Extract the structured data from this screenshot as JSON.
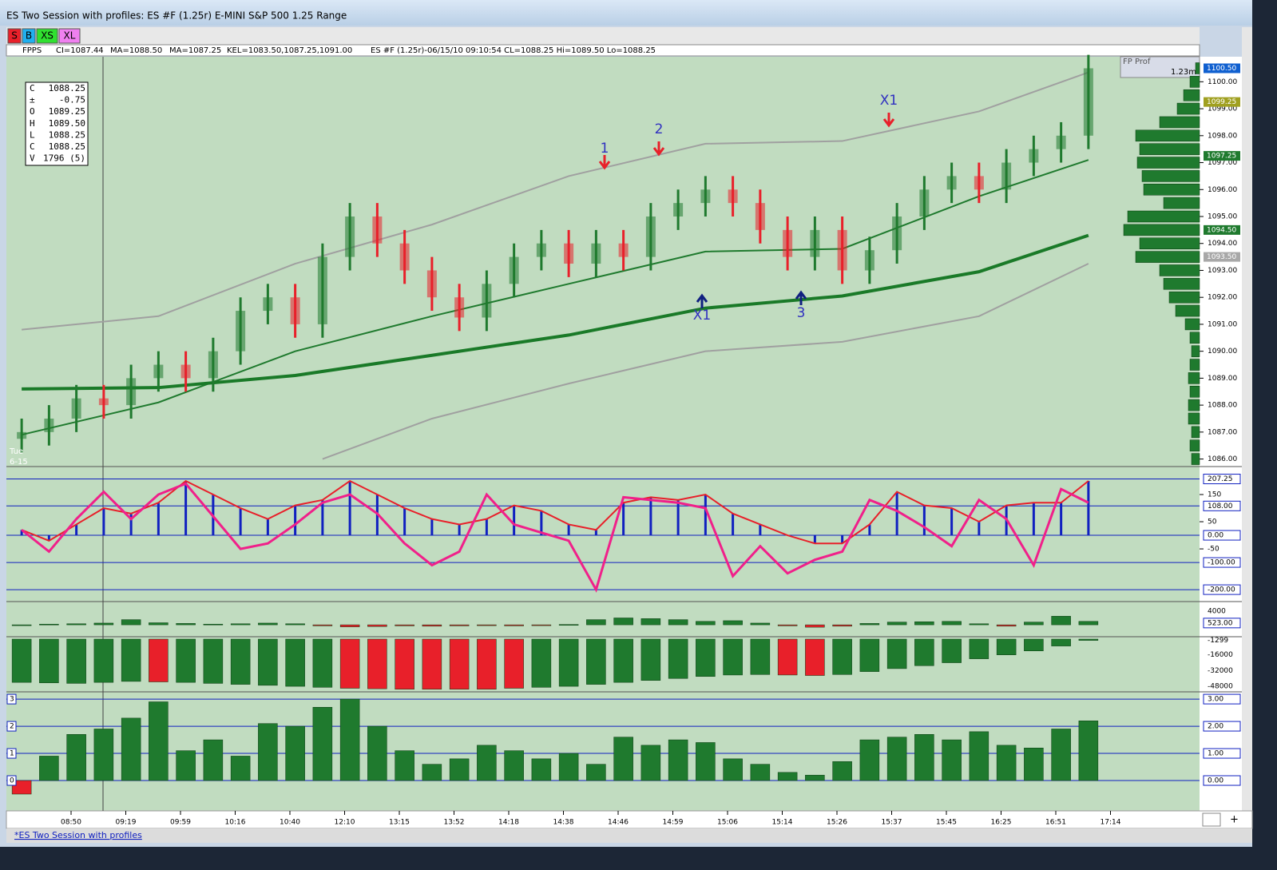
{
  "window": {
    "title": "ES Two Session with profiles: ES #F (1.25r) E-MINI S&P 500 1.25 Range",
    "tab": "*ES Two Session with profiles"
  },
  "toolbar": {
    "buttons": [
      {
        "label": "S",
        "color": "#e8202a"
      },
      {
        "label": "B",
        "color": "#20b0f0"
      },
      {
        "label": "XS",
        "color": "#30e030"
      },
      {
        "label": "XL",
        "color": "#f080f0"
      }
    ]
  },
  "info_line": [
    "FPPS",
    "CI=1087.44",
    "MA=1088.50",
    "MA=1087.25",
    "KEL=1083.50,1087.25,1091.00",
    "ES #F (1.25r)-06/15/10 09:10:54 CL=1088.25 Hi=1089.50 Lo=1088.25"
  ],
  "data_box": {
    "rows": [
      [
        "C",
        "1088.25"
      ],
      [
        "±",
        "-0.75"
      ],
      [
        "O",
        "1089.25"
      ],
      [
        "H",
        "1089.50"
      ],
      [
        "L",
        "1088.25"
      ],
      [
        "C",
        "1088.25"
      ],
      [
        "V",
        "1796 (5)"
      ]
    ]
  },
  "price_panel": {
    "type": "candlestick",
    "date_label": [
      "Tue",
      "6-15"
    ],
    "open": [
      1086.75,
      1087.0,
      1087.5,
      1088.25,
      1088.0,
      1089.0,
      1089.5,
      1089.0,
      1090.0,
      1091.5,
      1092.0,
      1091.0,
      1093.5,
      1095.0,
      1094.0,
      1093.0,
      1092.0,
      1091.25,
      1092.5,
      1093.5,
      1094.0,
      1093.25,
      1094.0,
      1093.5,
      1095.0,
      1095.5,
      1096.0,
      1095.5,
      1094.5,
      1093.5,
      1094.5,
      1093.0,
      1093.75,
      1095.0,
      1096.0,
      1096.5,
      1096.0,
      1097.0,
      1097.5,
      1098.0
    ],
    "high": [
      1087.5,
      1088.0,
      1088.75,
      1088.75,
      1089.5,
      1090.0,
      1090.0,
      1090.5,
      1092.0,
      1092.5,
      1092.5,
      1094.0,
      1095.5,
      1095.5,
      1094.5,
      1093.5,
      1092.5,
      1093.0,
      1094.0,
      1094.5,
      1094.5,
      1094.5,
      1094.5,
      1095.5,
      1096.0,
      1096.5,
      1096.5,
      1096.0,
      1095.0,
      1095.0,
      1095.0,
      1094.25,
      1095.5,
      1096.5,
      1097.0,
      1097.0,
      1097.5,
      1098.0,
      1098.5,
      1101.0
    ],
    "low": [
      1086.25,
      1086.5,
      1087.0,
      1087.5,
      1087.5,
      1088.5,
      1088.5,
      1088.5,
      1089.5,
      1091.0,
      1090.5,
      1090.5,
      1093.0,
      1093.5,
      1092.5,
      1091.5,
      1090.75,
      1090.75,
      1092.0,
      1093.0,
      1092.75,
      1092.75,
      1093.0,
      1093.0,
      1094.5,
      1095.0,
      1095.0,
      1094.0,
      1093.0,
      1093.0,
      1092.5,
      1092.5,
      1093.25,
      1094.5,
      1095.5,
      1095.5,
      1095.5,
      1096.5,
      1097.0,
      1097.5
    ],
    "close": [
      1087.0,
      1087.5,
      1088.25,
      1088.0,
      1089.0,
      1089.5,
      1089.0,
      1090.0,
      1091.5,
      1092.0,
      1091.0,
      1093.5,
      1095.0,
      1094.0,
      1093.0,
      1092.0,
      1091.25,
      1092.5,
      1093.5,
      1094.0,
      1093.25,
      1094.0,
      1093.5,
      1095.0,
      1095.5,
      1096.0,
      1095.5,
      1094.5,
      1093.5,
      1094.5,
      1093.0,
      1093.75,
      1095.0,
      1096.0,
      1096.5,
      1096.0,
      1097.0,
      1097.5,
      1098.0,
      1100.5
    ],
    "up_color": "#1f7a2e",
    "down_color": "#e8202a",
    "lines": [
      {
        "color": "#a0a0a0",
        "width": 2,
        "x": [
          0,
          5,
          10,
          15,
          20,
          25,
          30,
          35,
          39
        ],
        "values": [
          1090.8,
          1091.3,
          1093.25,
          1094.7,
          1096.5,
          1097.7,
          1097.8,
          1098.9,
          1100.35
        ]
      },
      {
        "color": "#a0a0a0",
        "width": 2,
        "x": [
          11,
          15,
          20,
          25,
          30,
          35,
          39
        ],
        "values": [
          1086.0,
          1087.5,
          1088.8,
          1090.0,
          1090.35,
          1091.3,
          1093.25
        ]
      },
      {
        "color": "#1f7a2e",
        "width": 2,
        "x": [
          0,
          5,
          10,
          15,
          20,
          25,
          30,
          35,
          39
        ],
        "values": [
          1086.9,
          1088.1,
          1090.0,
          1091.3,
          1092.5,
          1093.7,
          1093.8,
          1095.75,
          1097.1
        ]
      },
      {
        "color": "#1a7a28",
        "width": 4,
        "x": [
          0,
          5,
          10,
          15,
          20,
          25,
          30,
          35,
          39
        ],
        "values": [
          1088.6,
          1088.65,
          1089.1,
          1089.85,
          1090.6,
          1091.6,
          1092.05,
          1092.95,
          1094.3
        ]
      }
    ],
    "ylim": [
      1085.75,
      1100.9
    ],
    "yticks": [
      {
        "value": 1086,
        "label": "1086.00"
      },
      {
        "value": 1087,
        "label": "1087.00"
      },
      {
        "value": 1088,
        "label": "1088.00"
      },
      {
        "value": 1089,
        "label": "1089.00"
      },
      {
        "value": 1090,
        "label": "1090.00"
      },
      {
        "value": 1091,
        "label": "1091.00"
      },
      {
        "value": 1092,
        "label": "1092.00"
      },
      {
        "value": 1093,
        "label": "1093.00"
      },
      {
        "value": 1094,
        "label": "1094.00"
      },
      {
        "value": 1095,
        "label": "1095.00"
      },
      {
        "value": 1096,
        "label": "1096.00"
      },
      {
        "value": 1097,
        "label": "1097.00"
      },
      {
        "value": 1098,
        "label": "1098.00"
      },
      {
        "value": 1099,
        "label": "1099.00"
      },
      {
        "value": 1100,
        "label": "1100.00"
      }
    ],
    "price_markers": [
      {
        "value": 1100.5,
        "label": "1100.50",
        "color": "#1060d0"
      },
      {
        "value": 1099.25,
        "label": "1099.25",
        "color": "#a0a020"
      },
      {
        "value": 1097.25,
        "label": "1097.25",
        "color": "#1f7a2e"
      },
      {
        "value": 1094.5,
        "label": "1094.50",
        "color": "#1f7a2e"
      },
      {
        "value": 1093.5,
        "label": "1093.50",
        "color": "#a8a8a8"
      }
    ],
    "annotations": [
      {
        "text": "1",
        "dir": "down"
      },
      {
        "text": "2",
        "dir": "down"
      },
      {
        "text": "X1",
        "dir": "down"
      },
      {
        "text": "X1",
        "dir": "up"
      },
      {
        "text": "3",
        "dir": "up"
      }
    ]
  },
  "profile": {
    "title": "FP Prof",
    "label": "1.23m",
    "color": "#1f7a2e",
    "levels": [
      1086,
      1086.5,
      1087,
      1087.5,
      1088,
      1088.5,
      1089,
      1089.5,
      1090,
      1090.5,
      1091,
      1091.5,
      1092,
      1092.5,
      1093,
      1093.5,
      1094,
      1094.5,
      1095,
      1095.5,
      1096,
      1096.5,
      1097,
      1097.5,
      1098,
      1098.5,
      1099,
      1099.5,
      1100,
      1100.5
    ],
    "values": [
      10,
      12,
      10,
      14,
      14,
      12,
      14,
      12,
      10,
      12,
      18,
      30,
      38,
      45,
      50,
      80,
      75,
      95,
      90,
      45,
      70,
      72,
      78,
      75,
      80,
      50,
      28,
      20,
      12,
      5
    ]
  },
  "oscillator": {
    "type": "bar",
    "color": "#1020c0",
    "line_color": "#e8202a",
    "osc_color": "#f0208a",
    "values": [
      20,
      -20,
      40,
      100,
      80,
      120,
      200,
      150,
      100,
      60,
      110,
      130,
      200,
      150,
      100,
      60,
      40,
      60,
      110,
      90,
      40,
      20,
      120,
      140,
      130,
      150,
      80,
      40,
      0,
      -30,
      -30,
      40,
      160,
      110,
      100,
      50,
      110,
      120,
      120,
      200
    ],
    "line": [
      20,
      -60,
      60,
      160,
      60,
      150,
      190,
      70,
      -50,
      -30,
      40,
      120,
      150,
      80,
      -30,
      -110,
      -60,
      150,
      40,
      10,
      -20,
      -200,
      140,
      130,
      120,
      100,
      -150,
      -40,
      -140,
      -90,
      -60,
      130,
      90,
      30,
      -40,
      130,
      60,
      -110,
      170,
      120
    ],
    "ylim": [
      -235,
      250
    ],
    "yticks": [
      {
        "value": 207.25,
        "label": "207.25"
      },
      150,
      {
        "value": 108,
        "label": "108.00"
      },
      50,
      {
        "value": 0,
        "label": "0.00"
      },
      -50,
      {
        "value": -100,
        "label": "-100.00"
      },
      {
        "value": -200,
        "label": "-200.00"
      }
    ]
  },
  "delta": {
    "type": "bar",
    "up_color": "#1f7a2e",
    "down_color": "#e8202a",
    "values": [
      0,
      200,
      300,
      500,
      1500,
      600,
      400,
      200,
      300,
      500,
      300,
      -300,
      -600,
      -500,
      -300,
      -400,
      -300,
      -200,
      -300,
      -100,
      100,
      1500,
      2000,
      1800,
      1500,
      1000,
      1200,
      500,
      -300,
      -700,
      -400,
      400,
      800,
      900,
      1000,
      300,
      -400,
      800,
      2500,
      1000
    ],
    "ylim": [
      -3000,
      6300
    ],
    "yticks": [
      4000,
      {
        "value": 523,
        "label": "523.00"
      }
    ]
  },
  "cumulative": {
    "type": "bar",
    "values": [
      -44000,
      -44500,
      -45000,
      -44000,
      -43000,
      -43500,
      -44000,
      -45000,
      -46000,
      -47000,
      -48000,
      -49000,
      -50000,
      -50500,
      -51000,
      -51000,
      -51000,
      -51000,
      -50000,
      -49000,
      -48000,
      -46000,
      -44000,
      -42000,
      -40000,
      -38000,
      -36500,
      -36000,
      -36500,
      -37000,
      -36000,
      -33000,
      -30000,
      -27000,
      -24000,
      -20000,
      -16000,
      -12000,
      -7000,
      -1299
    ],
    "colors": [
      "#1f7a2e",
      "#1f7a2e",
      "#1f7a2e",
      "#1f7a2e",
      "#1f7a2e",
      "#e8202a",
      "#1f7a2e",
      "#1f7a2e",
      "#1f7a2e",
      "#1f7a2e",
      "#1f7a2e",
      "#1f7a2e",
      "#e8202a",
      "#e8202a",
      "#e8202a",
      "#e8202a",
      "#e8202a",
      "#e8202a",
      "#e8202a",
      "#1f7a2e",
      "#1f7a2e",
      "#1f7a2e",
      "#1f7a2e",
      "#1f7a2e",
      "#1f7a2e",
      "#1f7a2e",
      "#1f7a2e",
      "#1f7a2e",
      "#e8202a",
      "#e8202a",
      "#1f7a2e",
      "#1f7a2e",
      "#1f7a2e",
      "#1f7a2e",
      "#1f7a2e",
      "#1f7a2e",
      "#1f7a2e",
      "#1f7a2e",
      "#1f7a2e",
      "#1f7a2e"
    ],
    "ylim": [
      -52000,
      0
    ],
    "yticks": [
      -1299,
      -16000,
      -32000,
      -48000
    ]
  },
  "ratio": {
    "type": "bar",
    "up_color": "#1f7a2e",
    "down_color": "#e8202a",
    "values": [
      -0.5,
      0.9,
      1.7,
      1.9,
      2.3,
      2.9,
      1.1,
      1.5,
      0.9,
      2.1,
      2.0,
      2.7,
      3.0,
      2.0,
      1.1,
      0.6,
      0.8,
      1.3,
      1.1,
      0.8,
      1.0,
      0.6,
      1.6,
      1.3,
      1.5,
      1.4,
      0.8,
      0.6,
      0.3,
      0.2,
      0.7,
      1.5,
      1.6,
      1.7,
      1.5,
      1.8,
      1.3,
      1.2,
      1.9,
      2.2
    ],
    "ylim": [
      -1.03,
      3.15
    ],
    "yticks": [
      {
        "value": 0,
        "label": "0.00"
      },
      {
        "value": 1,
        "label": "1.00"
      },
      {
        "value": 2,
        "label": "2.00"
      },
      {
        "value": 3,
        "label": "3.00"
      }
    ],
    "left_ticks": [
      0,
      1,
      2,
      3
    ]
  },
  "time_axis": {
    "labels": [
      "08:50",
      "09:19",
      "09:59",
      "10:16",
      "10:40",
      "12:10",
      "13:15",
      "13:52",
      "14:18",
      "14:38",
      "14:46",
      "14:59",
      "15:06",
      "15:14",
      "15:26",
      "15:37",
      "15:45",
      "16:25",
      "16:51",
      "17:14"
    ]
  }
}
